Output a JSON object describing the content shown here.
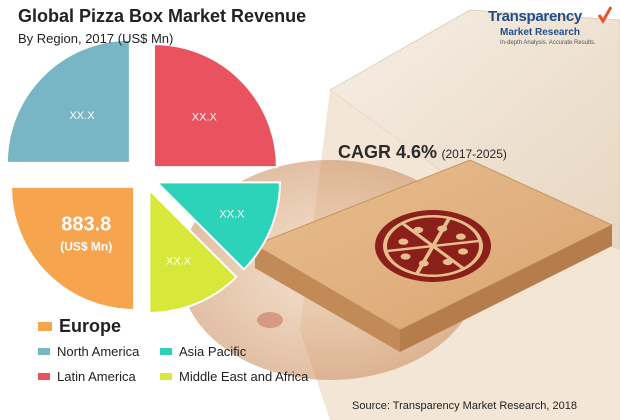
{
  "header": {
    "title": "Global Pizza Box Market Revenue",
    "subtitle": "By Region, 2017 (US$ Mn)"
  },
  "logo": {
    "name": "Transparency",
    "line2": "Market Research",
    "tagline": "In-depth Analysis. Accurate Results.",
    "color": "#1f4e8c",
    "check_color": "#e8542a"
  },
  "cagr": {
    "value": "CAGR 4.6%",
    "period": "(2017-2025)"
  },
  "source": "Source: Transparency Market Research, 2018",
  "chart_data": {
    "type": "pie",
    "title": "Global Pizza Box Market Revenue",
    "subtitle": "By Region, 2017 (US$ Mn)",
    "legend_position": "bottom-left",
    "slices": [
      {
        "name": "North America",
        "label": "XX.X",
        "color": "#79b6c5",
        "value": null
      },
      {
        "name": "Latin America",
        "label": "XX.X",
        "color": "#e9525f",
        "value": null
      },
      {
        "name": "Asia Pacific",
        "label": "XX.X",
        "color": "#2dd3b8",
        "value": null
      },
      {
        "name": "Middle East and Africa",
        "label": "XX.X",
        "color": "#d7e83b",
        "value": null
      },
      {
        "name": "Europe",
        "label": "883.8",
        "sublabel": "(US$ Mn)",
        "color": "#f6a54e",
        "value": 883.8
      }
    ]
  }
}
